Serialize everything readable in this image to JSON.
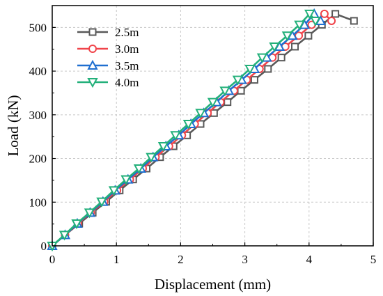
{
  "chart_data": {
    "type": "line",
    "xlabel": "Displacement (mm)",
    "ylabel": "Load (kN)",
    "xlim": [
      0,
      5
    ],
    "ylim": [
      0,
      550
    ],
    "xticks": [
      "0",
      "1",
      "2",
      "3",
      "4",
      "5"
    ],
    "yticks": [
      "0",
      "100",
      "200",
      "300",
      "400",
      "500"
    ],
    "xtick_values": [
      0,
      1,
      2,
      3,
      4,
      5
    ],
    "ytick_values": [
      0,
      100,
      200,
      300,
      400,
      500
    ],
    "grid": true,
    "legend_position": "top-left",
    "series": [
      {
        "name": "2.5m",
        "color": "#595959",
        "marker": "square",
        "x": [
          0,
          0.2,
          0.42,
          0.63,
          0.84,
          1.05,
          1.26,
          1.47,
          1.68,
          1.89,
          2.1,
          2.31,
          2.52,
          2.73,
          2.94,
          3.15,
          3.36,
          3.57,
          3.78,
          3.99,
          4.2,
          4.41,
          4.7
        ],
        "y": [
          0,
          25,
          51,
          76,
          101,
          127,
          152,
          177,
          203,
          228,
          253,
          279,
          304,
          329,
          355,
          380,
          405,
          431,
          456,
          481,
          506,
          531,
          515
        ]
      },
      {
        "name": "3.0m",
        "color": "#f0444a",
        "marker": "circle",
        "x": [
          0,
          0.2,
          0.4,
          0.6,
          0.81,
          1.01,
          1.21,
          1.41,
          1.61,
          1.82,
          2.02,
          2.22,
          2.42,
          2.62,
          2.83,
          3.03,
          3.23,
          3.43,
          3.63,
          3.84,
          4.04,
          4.24,
          4.35
        ],
        "y": [
          0,
          25,
          51,
          76,
          101,
          127,
          152,
          177,
          203,
          228,
          253,
          279,
          304,
          329,
          355,
          380,
          405,
          431,
          456,
          481,
          506,
          531,
          515
        ]
      },
      {
        "name": "3.5m",
        "color": "#1f6fd0",
        "marker": "triangle-up",
        "x": [
          0,
          0.2,
          0.39,
          0.59,
          0.79,
          0.98,
          1.18,
          1.38,
          1.57,
          1.77,
          1.97,
          2.16,
          2.36,
          2.56,
          2.75,
          2.95,
          3.15,
          3.34,
          3.54,
          3.74,
          3.93,
          4.08,
          4.18
        ],
        "y": [
          0,
          25,
          51,
          76,
          101,
          127,
          152,
          177,
          203,
          228,
          253,
          279,
          304,
          329,
          355,
          380,
          405,
          431,
          456,
          481,
          506,
          531,
          515
        ]
      },
      {
        "name": "4.0m",
        "color": "#23b07a",
        "marker": "triangle-down",
        "x": [
          0,
          0.19,
          0.38,
          0.58,
          0.77,
          0.96,
          1.15,
          1.35,
          1.54,
          1.73,
          1.92,
          2.12,
          2.31,
          2.5,
          2.69,
          2.89,
          3.08,
          3.27,
          3.46,
          3.66,
          3.85,
          4.01,
          4.1
        ],
        "y": [
          0,
          25,
          51,
          76,
          101,
          127,
          152,
          177,
          203,
          228,
          253,
          279,
          304,
          329,
          355,
          380,
          405,
          431,
          456,
          481,
          506,
          531,
          515
        ]
      }
    ]
  }
}
